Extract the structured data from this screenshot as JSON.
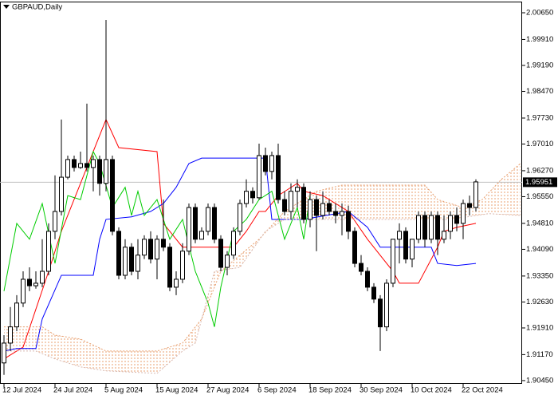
{
  "chart_data": {
    "type": "candlestick",
    "title": "GBPAUD,Daily",
    "categories": [
      "12 Jul 2024",
      null,
      null,
      null,
      null,
      null,
      null,
      null,
      "24 Jul 2024",
      null,
      null,
      null,
      null,
      null,
      null,
      null,
      "5 Aug 2024",
      null,
      null,
      null,
      null,
      null,
      null,
      null,
      "15 Aug 2024",
      null,
      null,
      null,
      null,
      null,
      null,
      null,
      "27 Aug 2024",
      null,
      null,
      null,
      null,
      null,
      null,
      null,
      "6 Sep 2024",
      null,
      null,
      null,
      null,
      null,
      null,
      null,
      "18 Sep 2024",
      null,
      null,
      null,
      null,
      null,
      null,
      null,
      "30 Sep 2024",
      null,
      null,
      null,
      null,
      null,
      null,
      null,
      "10 Oct 2024",
      null,
      null,
      null,
      null,
      null,
      null,
      null,
      "22 Oct 2024",
      null,
      null
    ],
    "candles": {
      "open": [
        1.9094,
        1.9149,
        1.9194,
        1.926,
        1.9326,
        1.9308,
        1.9315,
        1.9348,
        1.9459,
        1.9514,
        1.9609,
        1.9658,
        1.9636,
        1.9647,
        1.9636,
        1.9658,
        1.9592,
        1.9658,
        1.9459,
        1.9337,
        1.9415,
        1.9348,
        1.9393,
        1.9437,
        1.9382,
        1.9437,
        1.9415,
        1.9304,
        1.9326,
        1.9404,
        1.9525,
        1.9437,
        1.9459,
        1.9525,
        1.9437,
        1.9359,
        1.9393,
        1.9459,
        1.9536,
        1.957,
        1.9552,
        1.9669,
        1.9625,
        1.9669,
        1.9547,
        1.9514,
        1.957,
        1.9581,
        1.9492,
        1.9547,
        1.9503,
        1.9536,
        1.9514,
        1.9503,
        1.9514,
        1.9459,
        1.937,
        1.9348,
        1.9304,
        1.9271,
        1.9194,
        1.9315,
        1.9437,
        1.9459,
        1.9382,
        1.9437,
        1.9503,
        1.9437,
        1.9503,
        1.9437,
        1.9459,
        1.9503,
        1.9481,
        1.9536,
        1.9525
      ],
      "high": [
        1.9171,
        1.9249,
        1.9282,
        1.9348,
        1.9359,
        1.9348,
        1.9437,
        1.9481,
        1.9614,
        1.9769,
        1.9669,
        1.9669,
        1.968,
        1.9813,
        1.9669,
        1.9669,
        2.0045,
        1.9669,
        1.947,
        1.9437,
        1.9426,
        1.9437,
        1.9448,
        1.9459,
        1.9448,
        1.9547,
        1.9426,
        1.9348,
        1.9426,
        1.9536,
        1.9536,
        1.947,
        1.9536,
        1.9536,
        1.9448,
        1.9404,
        1.947,
        1.9547,
        1.9603,
        1.9581,
        1.9702,
        1.9691,
        1.968,
        1.9702,
        1.957,
        1.9592,
        1.9603,
        1.9592,
        1.957,
        1.9558,
        1.957,
        1.9547,
        1.9536,
        1.9536,
        1.953,
        1.947,
        1.9393,
        1.9359,
        1.9315,
        1.9282,
        1.9326,
        1.9437,
        1.9481,
        1.947,
        1.9437,
        1.9514,
        1.9514,
        1.9514,
        1.9514,
        1.9503,
        1.9514,
        1.9525,
        1.9547,
        1.9558,
        1.9603
      ],
      "low": [
        1.9061,
        1.9127,
        1.9182,
        1.9249,
        1.9293,
        1.93,
        1.9304,
        1.9337,
        1.9437,
        1.9503,
        1.9603,
        1.9625,
        1.9632,
        1.9625,
        1.957,
        1.9558,
        1.957,
        1.9448,
        1.9326,
        1.9326,
        1.9337,
        1.9326,
        1.9382,
        1.937,
        1.9326,
        1.9404,
        1.9293,
        1.9282,
        1.9315,
        1.9393,
        1.9426,
        1.9437,
        1.9448,
        1.9426,
        1.9348,
        1.9337,
        1.9382,
        1.9448,
        1.9525,
        1.9536,
        1.9547,
        1.9614,
        1.9603,
        1.9536,
        1.9503,
        1.9492,
        1.9525,
        1.9481,
        1.947,
        1.9404,
        1.9492,
        1.9503,
        1.9481,
        1.9448,
        1.9437,
        1.9359,
        1.9337,
        1.9293,
        1.926,
        1.9127,
        1.9182,
        1.9304,
        1.937,
        1.937,
        1.9359,
        1.9426,
        1.9415,
        1.9426,
        1.9393,
        1.9426,
        1.9437,
        1.9459,
        1.9437,
        1.9503,
        1.9514
      ],
      "close": [
        1.9149,
        1.9194,
        1.926,
        1.9326,
        1.9308,
        1.9315,
        1.9348,
        1.9459,
        1.9514,
        1.9609,
        1.9658,
        1.9636,
        1.9647,
        1.9636,
        1.9658,
        1.9592,
        1.9658,
        1.9459,
        1.9337,
        1.9415,
        1.9348,
        1.9393,
        1.9437,
        1.9382,
        1.9437,
        1.9415,
        1.9304,
        1.9326,
        1.9404,
        1.9525,
        1.9437,
        1.9459,
        1.9525,
        1.9437,
        1.9359,
        1.9393,
        1.9459,
        1.9536,
        1.957,
        1.9552,
        1.9669,
        1.9625,
        1.9669,
        1.9547,
        1.9514,
        1.957,
        1.9581,
        1.9492,
        1.9547,
        1.9503,
        1.9536,
        1.9514,
        1.9503,
        1.9514,
        1.9459,
        1.937,
        1.9348,
        1.9304,
        1.9271,
        1.9194,
        1.9315,
        1.9437,
        1.9459,
        1.9382,
        1.9437,
        1.9503,
        1.9437,
        1.9503,
        1.9437,
        1.9459,
        1.9503,
        1.9481,
        1.9536,
        1.9525,
        1.9596
      ]
    },
    "up_color": "#ffffff",
    "down_color": "#000000",
    "outline_color": "#000000",
    "series": [
      {
        "color": "#ff0000",
        "x": [
          0,
          3,
          7,
          9,
          16,
          18,
          24,
          25,
          28,
          36,
          38,
          40,
          41,
          43,
          46,
          47,
          50,
          54,
          57,
          61,
          62,
          65,
          68,
          69,
          71,
          74
        ],
        "values": [
          1.9105,
          1.9138,
          1.9348,
          1.9459,
          1.9769,
          1.9691,
          1.968,
          1.9481,
          1.9415,
          1.9415,
          1.9459,
          1.9514,
          1.9514,
          1.9558,
          1.9592,
          1.957,
          1.9558,
          1.9514,
          1.9437,
          1.9348,
          1.9315,
          1.9315,
          1.9415,
          1.9459,
          1.947,
          1.9481
        ]
      },
      {
        "color": "#0000ff",
        "x": [
          0,
          2,
          5,
          6,
          9,
          14,
          15,
          16,
          20,
          23,
          25,
          27,
          29,
          31,
          41,
          42,
          47,
          54,
          57,
          59,
          62,
          67,
          68,
          71,
          74
        ],
        "values": [
          1.9127,
          1.9134,
          1.9134,
          1.9216,
          1.9337,
          1.9337,
          1.9437,
          1.9492,
          1.9499,
          1.9514,
          1.9536,
          1.9581,
          1.9647,
          1.9662,
          1.9662,
          1.9492,
          1.9492,
          1.9514,
          1.947,
          1.9415,
          1.9415,
          1.9415,
          1.937,
          1.9364,
          1.937
        ]
      },
      {
        "color": "#00cc00",
        "x": [
          0,
          2,
          4,
          6,
          8,
          10,
          12,
          14,
          15,
          17,
          19,
          20,
          21,
          22,
          24,
          26,
          28,
          30,
          32,
          33,
          34,
          36,
          38,
          40,
          42,
          44,
          46,
          47,
          48
        ],
        "values": [
          1.9293,
          1.9481,
          1.9437,
          1.9536,
          1.937,
          1.9558,
          1.9547,
          1.968,
          1.9647,
          1.9525,
          1.9581,
          1.9503,
          1.957,
          1.9503,
          1.9547,
          1.9437,
          1.9492,
          1.9348,
          1.926,
          1.9194,
          1.9304,
          1.9459,
          1.9492,
          1.9547,
          1.957,
          1.9437,
          1.9525,
          1.9437,
          1.9558
        ]
      },
      {
        "color": "#e8a070",
        "cloud": true,
        "x": [
          0,
          6,
          8,
          12,
          16,
          24,
          28,
          31,
          34,
          37,
          40,
          44,
          49,
          53,
          60,
          66,
          68,
          72,
          75,
          78,
          81
        ],
        "values": [
          1.9194,
          1.9194,
          1.9171,
          1.916,
          1.9127,
          1.9127,
          1.9149,
          1.9216,
          1.9348,
          1.9393,
          1.9437,
          1.9514,
          1.957,
          1.9587,
          1.9587,
          1.9587,
          1.9547,
          1.9525,
          1.9547,
          1.9603,
          1.9647
        ]
      },
      {
        "color": "#d8b8b0",
        "cloud": true,
        "x": [
          0,
          5,
          8,
          12,
          16,
          24,
          28,
          30,
          33,
          37,
          41,
          44,
          50,
          60,
          70,
          76,
          81
        ],
        "values": [
          1.9127,
          1.9127,
          1.9105,
          1.9083,
          1.9072,
          1.9065,
          1.9127,
          1.9149,
          1.9348,
          1.9359,
          1.9459,
          1.9492,
          1.9492,
          1.9492,
          1.9492,
          1.9508,
          1.9503
        ]
      }
    ],
    "last_price": 1.95951,
    "ylim": [
      1.9036,
      2.0096
    ],
    "yticks": [
      {
        "value": 2.0065,
        "label": "2.00650"
      },
      {
        "value": 1.9991,
        "label": "1.99910"
      },
      {
        "value": 1.9919,
        "label": "1.99190"
      },
      {
        "value": 1.9847,
        "label": "1.98470"
      },
      {
        "value": 1.9773,
        "label": "1.97730"
      },
      {
        "value": 1.9701,
        "label": "1.97010"
      },
      {
        "value": 1.9627,
        "label": "1.96270"
      },
      {
        "value": 1.9555,
        "label": "1.95550"
      },
      {
        "value": 1.9481,
        "label": "1.94810"
      },
      {
        "value": 1.9409,
        "label": "1.94090"
      },
      {
        "value": 1.9335,
        "label": "1.93350"
      },
      {
        "value": 1.9263,
        "label": "1.92630"
      },
      {
        "value": 1.9191,
        "label": "1.91910"
      },
      {
        "value": 1.9117,
        "label": "1.91170"
      },
      {
        "value": 1.9045,
        "label": "1.90450"
      }
    ]
  }
}
